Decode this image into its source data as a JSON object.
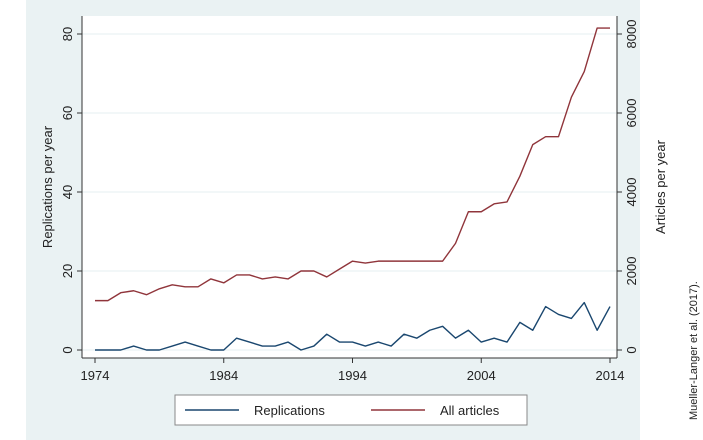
{
  "chart_data": {
    "type": "line",
    "xlabel": "",
    "ylabel_left": "Replications per year",
    "ylabel_right": "Articles per year",
    "xlim": [
      1974,
      2014
    ],
    "ylim_left": [
      0,
      80
    ],
    "ylim_right": [
      0,
      8000
    ],
    "x_ticks": [
      1974,
      1984,
      1994,
      2004,
      2014
    ],
    "y_ticks_left": [
      0,
      20,
      40,
      60,
      80
    ],
    "y_ticks_right": [
      0,
      2000,
      4000,
      6000,
      8000
    ],
    "grid": "horizontal",
    "legend_position": "bottom",
    "source_note": "Mueller-Langer et al. (2017).",
    "colors": {
      "background_outer": "#eaf2f3",
      "plot_background": "#ffffff",
      "grid": "#eaf2f3",
      "replications": "#1a476f",
      "all_articles": "#90353b"
    },
    "x": [
      1974,
      1975,
      1976,
      1977,
      1978,
      1979,
      1980,
      1981,
      1982,
      1983,
      1984,
      1985,
      1986,
      1987,
      1988,
      1989,
      1990,
      1991,
      1992,
      1993,
      1994,
      1995,
      1996,
      1997,
      1998,
      1999,
      2000,
      2001,
      2002,
      2003,
      2004,
      2005,
      2006,
      2007,
      2008,
      2009,
      2010,
      2011,
      2012,
      2013,
      2014
    ],
    "series": [
      {
        "name": "Replications",
        "axis": "left",
        "color": "#1a476f",
        "values": [
          0,
          0,
          0,
          1,
          0,
          0,
          1,
          2,
          1,
          0,
          0,
          3,
          2,
          1,
          1,
          2,
          0,
          1,
          4,
          2,
          2,
          1,
          2,
          1,
          4,
          3,
          5,
          6,
          3,
          5,
          2,
          3,
          2,
          7,
          5,
          11,
          9,
          8,
          12,
          5,
          11
        ]
      },
      {
        "name": "All articles",
        "axis": "right",
        "color": "#90353b",
        "values": [
          1250,
          1250,
          1450,
          1500,
          1400,
          1550,
          1650,
          1600,
          1600,
          1800,
          1700,
          1900,
          1900,
          1800,
          1850,
          1800,
          2000,
          2000,
          1850,
          2050,
          2250,
          2200,
          2250,
          2250,
          2250,
          2250,
          2250,
          2250,
          2700,
          3500,
          3500,
          3700,
          3750,
          4400,
          5200,
          5400,
          5400,
          6400,
          7050,
          8150,
          8150
        ]
      }
    ]
  }
}
